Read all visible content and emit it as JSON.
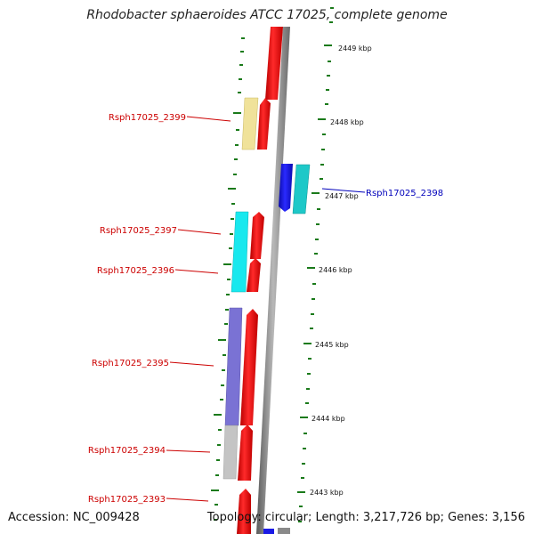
{
  "title": "Rhodobacter sphaeroides ATCC 17025, complete genome",
  "footer": {
    "accession": "Accession: NC_009428",
    "summary": "Topology: circular; Length: 3,217,726 bp; Genes: 3,156"
  },
  "colors": {
    "forward_cds": "#ee1111",
    "reverse_cds": "#1a1ae6",
    "label_forward": "#cc0000",
    "label_reverse": "#0000bb",
    "tick": "#1a7a1a",
    "backbone": "#8a8a8a",
    "yellow": "#f0e29a",
    "cyan_forward": "#18e8ee",
    "cyan_reverse": "#1ec8c8",
    "purple": "#7a72d4",
    "gray": "#c4c4c4"
  },
  "kbp_labels": [
    "2449 kbp",
    "2448 kbp",
    "2447 kbp",
    "2446 kbp",
    "2445 kbp",
    "2444 kbp",
    "2443 kbp"
  ],
  "gene_labels": {
    "rsph2399": "Rsph17025_2399",
    "rsph2398": "Rsph17025_2398",
    "rsph2397": "Rsph17025_2397",
    "rsph2396": "Rsph17025_2396",
    "rsph2395": "Rsph17025_2395",
    "rsph2394": "Rsph17025_2394",
    "rsph2393": "Rsph17025_2393"
  }
}
